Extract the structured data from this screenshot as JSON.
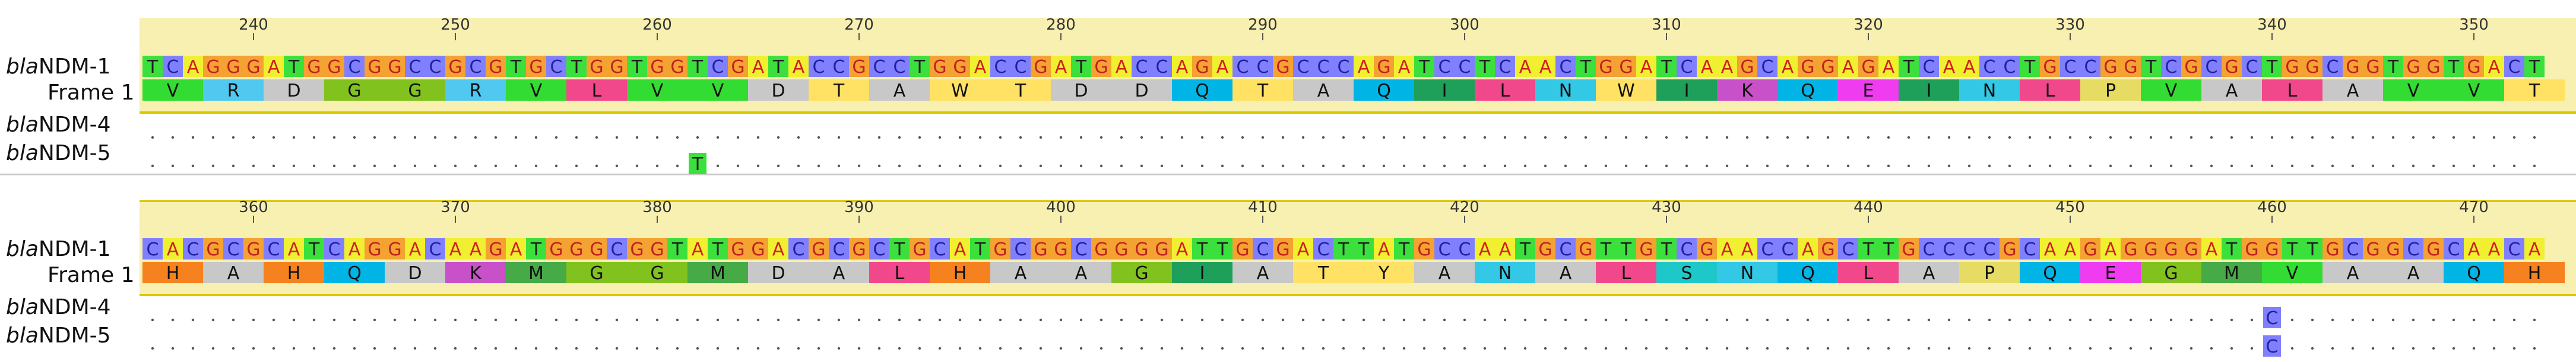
{
  "blocks": [
    {
      "ruler_labels": [
        "240",
        "250",
        "260",
        "270",
        "280",
        "290",
        "300",
        "310",
        "320",
        "330",
        "340",
        "350"
      ],
      "reference": {
        "name_italic": "bla",
        "name_rest": "NDM-1",
        "sequence": "TCAGGGATGGCGGCCGCGTGCTGGTGGTCGATACCGCCTGGACCGATGACCAGACCGCCCAGATCCTCAACTGGATCAAGCAGGAGATCAACCTGCCGGTCGCGCTGGCGGTGGTGACT"
      },
      "frame": {
        "label": "Frame 1",
        "aa": "VRDGGRVLVVDTAWTDDQTAQILNWIKQEINLPVALAVVT"
      },
      "variants": [
        {
          "name_italic": "bla",
          "name_rest": "NDM-4",
          "diffs": []
        },
        {
          "name_italic": "bla",
          "name_rest": "NDM-5",
          "diffs": [
            {
              "pos": 262,
              "base": "T"
            }
          ]
        }
      ]
    },
    {
      "ruler_labels": [
        "360",
        "370",
        "380",
        "390",
        "400",
        "410",
        "420",
        "430",
        "440",
        "450",
        "460",
        "470"
      ],
      "reference": {
        "name_italic": "bla",
        "name_rest": "NDM-1",
        "sequence": "CACGCGCATCAGGACAAGATGGGCGGTATGGACGCGCTGCATGCGGCGGGGATTGCGACTTATGCCAATGCGTTGTCGAACCAGCTTGCCCCGCAAGAGGGGATGGTTGCGGCGCAACA"
      },
      "frame": {
        "label": "Frame 1",
        "aa": "HAHQDKMGGMDALHAAGIATYANALSNQLAPQEGMVAAQH"
      },
      "variants": [
        {
          "name_italic": "bla",
          "name_rest": "NDM-4",
          "diffs": [
            {
              "pos": 460,
              "base": "C"
            }
          ]
        },
        {
          "name_italic": "bla",
          "name_rest": "NDM-5",
          "diffs": [
            {
              "pos": 460,
              "base": "C"
            }
          ]
        }
      ]
    }
  ],
  "colors": {
    "nucleotides": {
      "A": "#f0f030",
      "C": "#8080ff",
      "G": "#f4a232",
      "T": "#3ce03c"
    },
    "nucleotide_text": {
      "A": "#d02020",
      "C": "#2020a0",
      "G": "#c02020",
      "T": "#202020"
    },
    "amino_acids": {
      "V": "#32dc32",
      "R": "#50c8f0",
      "D": "#c8c8c8",
      "G": "#82c21e",
      "L": "#f0488a",
      "T": "#ffe164",
      "A": "#c8c8c8",
      "W": "#ffe164",
      "Q": "#00b4e6",
      "I": "#1ea05a",
      "N": "#32c8e6",
      "K": "#c850c8",
      "E": "#f03cf0",
      "P": "#e6dc64",
      "H": "#f5821e",
      "M": "#46aa46",
      "Y": "#ffe164",
      "S": "#1ec8c8"
    },
    "band": "#f7f0b0",
    "separator": "#c8c8c8"
  }
}
